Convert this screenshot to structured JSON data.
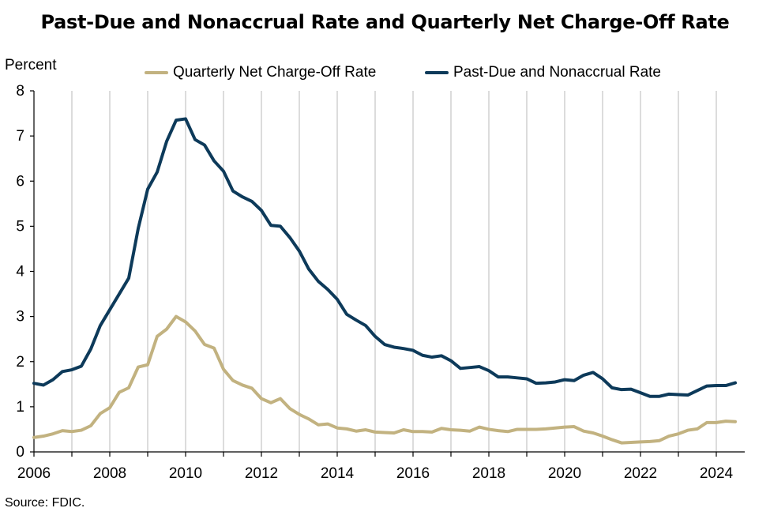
{
  "chart_data": {
    "type": "line",
    "title": "Past-Due and Nonaccrual Rate and Quarterly Net Charge-Off Rate",
    "ylabel": "Percent",
    "xlabel": "",
    "source": "Source: FDIC.",
    "ylim": [
      0,
      8
    ],
    "yticks": [
      "0",
      "1",
      "2",
      "3",
      "4",
      "5",
      "6",
      "7",
      "8"
    ],
    "xlim": [
      2006.0,
      2024.75
    ],
    "xticks": [
      "2006",
      "2008",
      "2010",
      "2012",
      "2014",
      "2016",
      "2018",
      "2020",
      "2022",
      "2024"
    ],
    "grid": "vertical",
    "legend_position": "top",
    "x_quarters_start": "2006 Q1",
    "series": [
      {
        "name": "Quarterly Net Charge-Off Rate",
        "color": "#c2b280",
        "values": [
          0.32,
          0.35,
          0.4,
          0.47,
          0.45,
          0.48,
          0.58,
          0.85,
          0.98,
          1.32,
          1.42,
          1.88,
          1.93,
          2.56,
          2.72,
          3.0,
          2.88,
          2.68,
          2.38,
          2.3,
          1.83,
          1.58,
          1.48,
          1.41,
          1.18,
          1.09,
          1.18,
          0.96,
          0.83,
          0.73,
          0.6,
          0.62,
          0.53,
          0.51,
          0.46,
          0.49,
          0.44,
          0.43,
          0.42,
          0.49,
          0.45,
          0.45,
          0.44,
          0.52,
          0.49,
          0.48,
          0.46,
          0.55,
          0.5,
          0.47,
          0.45,
          0.5,
          0.5,
          0.5,
          0.51,
          0.53,
          0.55,
          0.56,
          0.46,
          0.42,
          0.35,
          0.27,
          0.2,
          0.21,
          0.22,
          0.23,
          0.25,
          0.35,
          0.4,
          0.48,
          0.51,
          0.65,
          0.65,
          0.68,
          0.67
        ]
      },
      {
        "name": "Past-Due and Nonaccrual Rate",
        "color": "#0d3a5a",
        "values": [
          1.52,
          1.48,
          1.6,
          1.78,
          1.82,
          1.9,
          2.28,
          2.8,
          3.15,
          3.5,
          3.85,
          4.95,
          5.82,
          6.2,
          6.88,
          7.35,
          7.38,
          6.92,
          6.8,
          6.45,
          6.22,
          5.78,
          5.65,
          5.55,
          5.35,
          5.02,
          5.0,
          4.75,
          4.45,
          4.05,
          3.78,
          3.6,
          3.38,
          3.05,
          2.92,
          2.8,
          2.56,
          2.38,
          2.32,
          2.29,
          2.25,
          2.14,
          2.1,
          2.13,
          2.02,
          1.85,
          1.87,
          1.89,
          1.8,
          1.66,
          1.66,
          1.64,
          1.62,
          1.52,
          1.53,
          1.55,
          1.6,
          1.58,
          1.7,
          1.76,
          1.62,
          1.42,
          1.38,
          1.39,
          1.31,
          1.23,
          1.23,
          1.28,
          1.27,
          1.26,
          1.36,
          1.46,
          1.47,
          1.47,
          1.53
        ]
      }
    ]
  }
}
